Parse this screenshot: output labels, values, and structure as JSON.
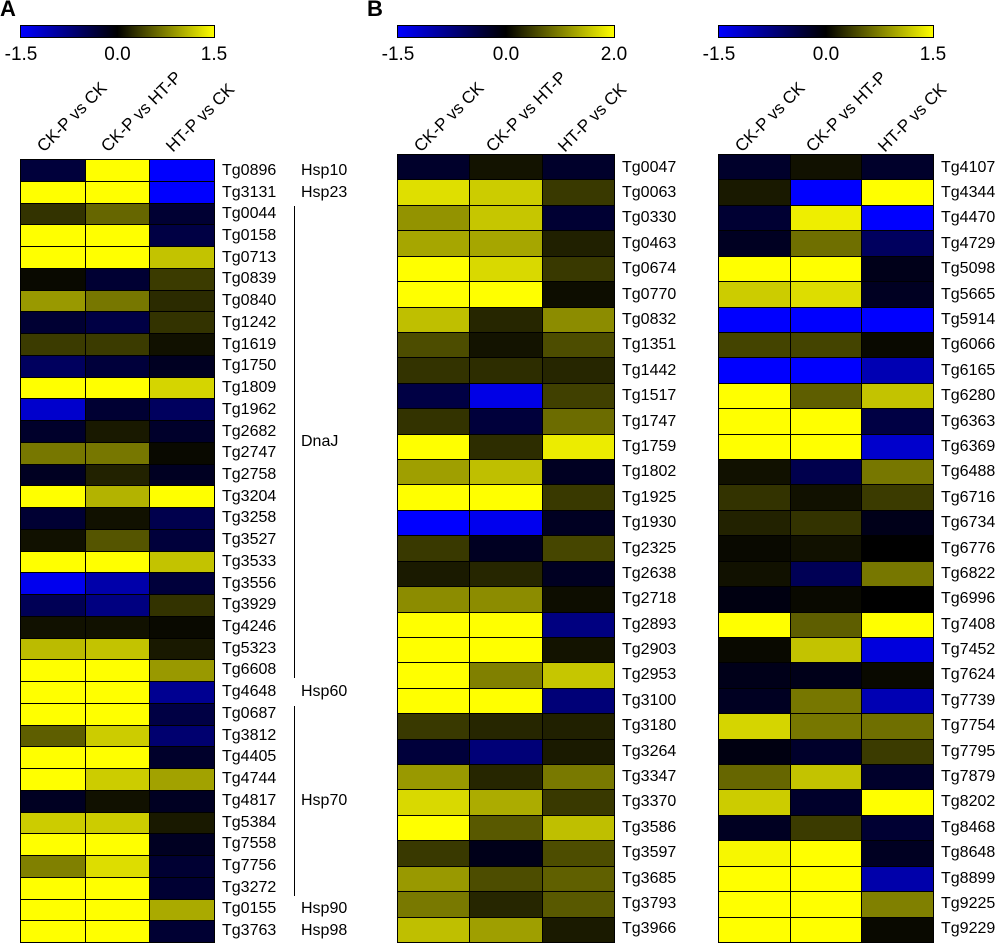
{
  "panel_labels": [
    {
      "text": "A"
    },
    {
      "text": "B"
    }
  ],
  "colors": {
    "background": "#ffffff",
    "grid": "#000000",
    "text": "#000000",
    "negative": "#0000ff",
    "zero": "#000000",
    "positive": "#ffff00"
  },
  "chart_data": [
    {
      "type": "heatmap",
      "panel": "A",
      "columns": [
        "CK-P vs CK",
        "CK-P vs HT-P",
        "HT-P vs CK"
      ],
      "colorbar": {
        "min": -1.5,
        "max": 1.5,
        "tick_labels": [
          "-1.5",
          "0.0",
          "1.5"
        ],
        "colormap": [
          "#0000ff",
          "#000000",
          "#ffff00"
        ]
      },
      "rows": [
        {
          "gene": "Tg0896",
          "values": [
            -0.35,
            1.5,
            -1.5
          ]
        },
        {
          "gene": "Tg3131",
          "values": [
            1.5,
            1.5,
            -1.5
          ]
        },
        {
          "gene": "Tg0044",
          "values": [
            0.3,
            0.6,
            -0.3
          ]
        },
        {
          "gene": "Tg0158",
          "values": [
            1.5,
            1.5,
            -0.4
          ]
        },
        {
          "gene": "Tg0713",
          "values": [
            1.5,
            1.5,
            1.15
          ]
        },
        {
          "gene": "Tg0839",
          "values": [
            0.05,
            -0.3,
            0.35
          ]
        },
        {
          "gene": "Tg0840",
          "values": [
            0.9,
            0.7,
            0.25
          ]
        },
        {
          "gene": "Tg1242",
          "values": [
            -0.3,
            -0.4,
            0.3
          ]
        },
        {
          "gene": "Tg1619",
          "values": [
            0.35,
            0.35,
            0.1
          ]
        },
        {
          "gene": "Tg1750",
          "values": [
            -0.55,
            -0.35,
            -0.2
          ]
        },
        {
          "gene": "Tg1809",
          "values": [
            1.5,
            1.5,
            1.25
          ]
        },
        {
          "gene": "Tg1962",
          "values": [
            -1.2,
            -0.3,
            -0.55
          ]
        },
        {
          "gene": "Tg2682",
          "values": [
            -0.25,
            0.15,
            -0.25
          ]
        },
        {
          "gene": "Tg2747",
          "values": [
            0.7,
            0.7,
            0.05
          ]
        },
        {
          "gene": "Tg2758",
          "values": [
            -0.2,
            0.2,
            -0.2
          ]
        },
        {
          "gene": "Tg3204",
          "values": [
            1.5,
            1.05,
            1.5
          ]
        },
        {
          "gene": "Tg3258",
          "values": [
            -0.3,
            0.1,
            -0.45
          ]
        },
        {
          "gene": "Tg3527",
          "values": [
            0.1,
            0.5,
            -0.35
          ]
        },
        {
          "gene": "Tg3533",
          "values": [
            1.5,
            1.5,
            1.15
          ]
        },
        {
          "gene": "Tg3556",
          "values": [
            -1.4,
            -1.0,
            -0.35
          ]
        },
        {
          "gene": "Tg3929",
          "values": [
            -0.5,
            -0.75,
            0.3
          ]
        },
        {
          "gene": "Tg4246",
          "values": [
            0.1,
            0.1,
            0.05
          ]
        },
        {
          "gene": "Tg5323",
          "values": [
            1.1,
            1.15,
            0.15
          ]
        },
        {
          "gene": "Tg6608",
          "values": [
            1.5,
            1.5,
            0.9
          ]
        },
        {
          "gene": "Tg4648",
          "values": [
            1.5,
            1.5,
            -0.85
          ]
        },
        {
          "gene": "Tg0687",
          "values": [
            1.5,
            1.5,
            -0.4
          ]
        },
        {
          "gene": "Tg3812",
          "values": [
            0.55,
            1.2,
            -0.65
          ]
        },
        {
          "gene": "Tg4405",
          "values": [
            1.5,
            1.5,
            -0.25
          ]
        },
        {
          "gene": "Tg4744",
          "values": [
            1.5,
            1.2,
            0.95
          ]
        },
        {
          "gene": "Tg4817",
          "values": [
            -0.2,
            0.1,
            -0.2
          ]
        },
        {
          "gene": "Tg5384",
          "values": [
            1.2,
            1.2,
            0.15
          ]
        },
        {
          "gene": "Tg7558",
          "values": [
            1.5,
            1.5,
            -0.2
          ]
        },
        {
          "gene": "Tg7756",
          "values": [
            0.75,
            1.3,
            -0.3
          ]
        },
        {
          "gene": "Tg3272",
          "values": [
            1.5,
            1.5,
            -0.3
          ]
        },
        {
          "gene": "Tg0155",
          "values": [
            1.5,
            1.5,
            1.0
          ]
        },
        {
          "gene": "Tg3763",
          "values": [
            1.5,
            1.5,
            -0.3
          ]
        }
      ],
      "families": [
        {
          "label": "Hsp10",
          "from": 0,
          "to": 0,
          "bracket": false
        },
        {
          "label": "Hsp23",
          "from": 1,
          "to": 1,
          "bracket": false
        },
        {
          "label": "DnaJ",
          "from": 2,
          "to": 23,
          "bracket": true
        },
        {
          "label": "Hsp60",
          "from": 24,
          "to": 24,
          "bracket": false
        },
        {
          "label": "Hsp70",
          "from": 25,
          "to": 33,
          "bracket": true
        },
        {
          "label": "Hsp90",
          "from": 34,
          "to": 34,
          "bracket": false
        },
        {
          "label": "Hsp98",
          "from": 35,
          "to": 35,
          "bracket": false
        }
      ]
    },
    {
      "type": "heatmap",
      "panel": "B-left",
      "columns": [
        "CK-P vs CK",
        "CK-P vs HT-P",
        "HT-P vs CK"
      ],
      "colorbar": {
        "min": -1.5,
        "max": 2.0,
        "tick_labels": [
          "-1.5",
          "0.0",
          "2.0"
        ],
        "colormap": [
          "#0000ff",
          "#000000",
          "#ffff00"
        ]
      },
      "rows": [
        {
          "gene": "Tg0047",
          "values": [
            -0.25,
            0.15,
            -0.25
          ]
        },
        {
          "gene": "Tg0063",
          "values": [
            1.75,
            1.6,
            0.45
          ]
        },
        {
          "gene": "Tg0330",
          "values": [
            1.15,
            1.55,
            -0.3
          ]
        },
        {
          "gene": "Tg0463",
          "values": [
            1.3,
            1.3,
            0.25
          ]
        },
        {
          "gene": "Tg0674",
          "values": [
            2.0,
            1.7,
            0.45
          ]
        },
        {
          "gene": "Tg0770",
          "values": [
            2.0,
            2.0,
            0.1
          ]
        },
        {
          "gene": "Tg0832",
          "values": [
            1.5,
            0.3,
            1.1
          ]
        },
        {
          "gene": "Tg1351",
          "values": [
            0.6,
            0.15,
            0.6
          ]
        },
        {
          "gene": "Tg1442",
          "values": [
            0.4,
            0.35,
            0.3
          ]
        },
        {
          "gene": "Tg1517",
          "values": [
            -0.4,
            -1.35,
            0.5
          ]
        },
        {
          "gene": "Tg1747",
          "values": [
            0.4,
            -0.35,
            0.85
          ]
        },
        {
          "gene": "Tg1759",
          "values": [
            2.0,
            0.35,
            1.85
          ]
        },
        {
          "gene": "Tg1802",
          "values": [
            1.25,
            1.5,
            -0.2
          ]
        },
        {
          "gene": "Tg1925",
          "values": [
            2.0,
            2.0,
            0.45
          ]
        },
        {
          "gene": "Tg1930",
          "values": [
            -1.5,
            -1.4,
            -0.2
          ]
        },
        {
          "gene": "Tg2325",
          "values": [
            0.45,
            -0.2,
            0.55
          ]
        },
        {
          "gene": "Tg2638",
          "values": [
            0.2,
            0.3,
            -0.2
          ]
        },
        {
          "gene": "Tg2718",
          "values": [
            1.1,
            1.1,
            0.1
          ]
        },
        {
          "gene": "Tg2893",
          "values": [
            2.0,
            2.0,
            -0.75
          ]
        },
        {
          "gene": "Tg2903",
          "values": [
            2.0,
            2.0,
            0.15
          ]
        },
        {
          "gene": "Tg2953",
          "values": [
            2.0,
            1.0,
            1.55
          ]
        },
        {
          "gene": "Tg3100",
          "values": [
            2.0,
            2.0,
            -0.7
          ]
        },
        {
          "gene": "Tg3180",
          "values": [
            0.45,
            0.3,
            0.25
          ]
        },
        {
          "gene": "Tg3264",
          "values": [
            -0.35,
            -0.7,
            0.2
          ]
        },
        {
          "gene": "Tg3347",
          "values": [
            1.2,
            0.3,
            0.95
          ]
        },
        {
          "gene": "Tg3370",
          "values": [
            1.7,
            1.35,
            0.45
          ]
        },
        {
          "gene": "Tg3586",
          "values": [
            2.0,
            0.7,
            1.5
          ]
        },
        {
          "gene": "Tg3597",
          "values": [
            0.45,
            -0.15,
            0.6
          ]
        },
        {
          "gene": "Tg3685",
          "values": [
            1.2,
            0.6,
            0.75
          ]
        },
        {
          "gene": "Tg3793",
          "values": [
            0.95,
            0.3,
            0.7
          ]
        },
        {
          "gene": "Tg3966",
          "values": [
            1.5,
            1.25,
            0.2
          ]
        }
      ]
    },
    {
      "type": "heatmap",
      "panel": "B-right",
      "columns": [
        "CK-P vs CK",
        "CK-P vs HT-P",
        "HT-P vs CK"
      ],
      "colorbar": {
        "min": -1.5,
        "max": 1.5,
        "tick_labels": [
          "-1.5",
          "0.0",
          "1.5"
        ],
        "colormap": [
          "#0000ff",
          "#000000",
          "#ffff00"
        ]
      },
      "rows": [
        {
          "gene": "Tg4107",
          "values": [
            -0.25,
            0.1,
            -0.25
          ]
        },
        {
          "gene": "Tg4344",
          "values": [
            0.15,
            -1.5,
            1.5
          ]
        },
        {
          "gene": "Tg4470",
          "values": [
            -0.3,
            1.4,
            -1.5
          ]
        },
        {
          "gene": "Tg4729",
          "values": [
            -0.2,
            0.65,
            -0.55
          ]
        },
        {
          "gene": "Tg5098",
          "values": [
            1.5,
            1.5,
            -0.15
          ]
        },
        {
          "gene": "Tg5665",
          "values": [
            1.2,
            1.3,
            -0.2
          ]
        },
        {
          "gene": "Tg5914",
          "values": [
            -1.5,
            -1.5,
            -1.5
          ]
        },
        {
          "gene": "Tg6066",
          "values": [
            0.4,
            0.4,
            0.05
          ]
        },
        {
          "gene": "Tg6165",
          "values": [
            -1.5,
            -1.5,
            -1.05
          ]
        },
        {
          "gene": "Tg6280",
          "values": [
            1.5,
            0.55,
            1.15
          ]
        },
        {
          "gene": "Tg6363",
          "values": [
            1.5,
            1.5,
            -0.4
          ]
        },
        {
          "gene": "Tg6369",
          "values": [
            1.5,
            1.5,
            -1.2
          ]
        },
        {
          "gene": "Tg6488",
          "values": [
            0.1,
            -0.45,
            0.7
          ]
        },
        {
          "gene": "Tg6716",
          "values": [
            0.3,
            0.1,
            0.35
          ]
        },
        {
          "gene": "Tg6734",
          "values": [
            0.2,
            0.3,
            -0.15
          ]
        },
        {
          "gene": "Tg6776",
          "values": [
            0.05,
            0.1,
            0.0
          ]
        },
        {
          "gene": "Tg6822",
          "values": [
            0.1,
            -0.5,
            0.7
          ]
        },
        {
          "gene": "Tg6996",
          "values": [
            -0.1,
            0.05,
            0.0
          ]
        },
        {
          "gene": "Tg7408",
          "values": [
            1.5,
            0.55,
            1.5
          ]
        },
        {
          "gene": "Tg7452",
          "values": [
            0.05,
            1.15,
            -1.3
          ]
        },
        {
          "gene": "Tg7624",
          "values": [
            -0.15,
            -0.15,
            0.05
          ]
        },
        {
          "gene": "Tg7739",
          "values": [
            -0.2,
            0.7,
            -1.05
          ]
        },
        {
          "gene": "Tg7754",
          "values": [
            1.25,
            0.7,
            0.65
          ]
        },
        {
          "gene": "Tg7795",
          "values": [
            -0.1,
            -0.25,
            0.35
          ]
        },
        {
          "gene": "Tg7879",
          "values": [
            0.6,
            1.15,
            -0.25
          ]
        },
        {
          "gene": "Tg8202",
          "values": [
            1.2,
            -0.25,
            1.5
          ]
        },
        {
          "gene": "Tg8468",
          "values": [
            -0.2,
            0.35,
            -0.3
          ]
        },
        {
          "gene": "Tg8648",
          "values": [
            1.45,
            1.5,
            -0.2
          ]
        },
        {
          "gene": "Tg8899",
          "values": [
            1.5,
            1.5,
            -1.0
          ]
        },
        {
          "gene": "Tg9225",
          "values": [
            1.5,
            1.5,
            0.75
          ]
        },
        {
          "gene": "Tg9229",
          "values": [
            1.5,
            1.5,
            0.05
          ]
        }
      ]
    }
  ]
}
